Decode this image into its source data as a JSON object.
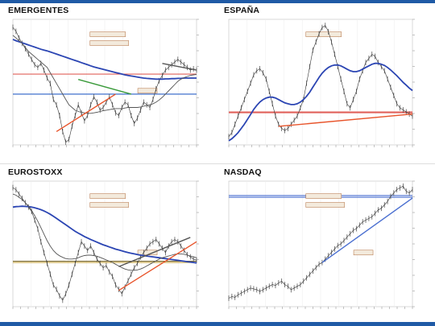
{
  "chart_data": [
    {
      "type": "line",
      "title": "EMERGENTES",
      "annotations": [
        "",
        "",
        ""
      ],
      "series": [
        {
          "role": "price",
          "color": "#333333",
          "values": [
            1290,
            1275,
            1250,
            1230,
            1210,
            1190,
            1170,
            1150,
            1140,
            1155,
            1130,
            1100,
            1080,
            1020,
            1000,
            960,
            900,
            860,
            870,
            920,
            960,
            1000,
            970,
            940,
            960,
            1000,
            1030,
            1010,
            980,
            990,
            1010,
            1030,
            1000,
            970,
            960,
            990,
            1010,
            1000,
            960,
            930,
            950,
            980,
            1010,
            1000,
            990,
            1020,
            1060,
            1090,
            1110,
            1130,
            1140,
            1150,
            1160,
            1170,
            1160,
            1150,
            1140,
            1130,
            1135,
            1130
          ]
        },
        {
          "role": "ma-long",
          "color": "#2b45b3",
          "values": [
            1245,
            1240,
            1236,
            1232,
            1228,
            1224,
            1220,
            1216,
            1212,
            1208,
            1205,
            1202,
            1198,
            1194,
            1190,
            1186,
            1182,
            1178,
            1174,
            1170,
            1166,
            1162,
            1158,
            1154,
            1150,
            1146,
            1142,
            1139,
            1136,
            1133,
            1130,
            1127,
            1124,
            1121,
            1118,
            1115,
            1112,
            1110,
            1108,
            1106,
            1104,
            1102,
            1100,
            1099,
            1098,
            1097,
            1096,
            1096,
            1096,
            1097,
            1097,
            1098,
            1098,
            1099,
            1099,
            1100,
            1100,
            1100,
            1100,
            1100
          ]
        },
        {
          "role": "ma-short",
          "color": "#555555",
          "values": [
            1260,
            1250,
            1240,
            1230,
            1215,
            1200,
            1190,
            1180,
            1170,
            1160,
            1150,
            1140,
            1120,
            1100,
            1080,
            1060,
            1040,
            1020,
            1000,
            990,
            980,
            975,
            972,
            970,
            968,
            968,
            970,
            972,
            975,
            978,
            980,
            982,
            984,
            986,
            986,
            986,
            988,
            990,
            990,
            990,
            990,
            992,
            995,
            998,
            1000,
            1004,
            1010,
            1018,
            1028,
            1040,
            1052,
            1064,
            1076,
            1088,
            1096,
            1102,
            1106,
            1110,
            1112,
            1114
          ]
        }
      ],
      "hlines": [
        {
          "y": 1115,
          "color": "#e0605a"
        },
        {
          "y": 1040,
          "color": "#2b62c7"
        }
      ],
      "trendlines": [
        {
          "from": [
            14,
            900
          ],
          "to": [
            33,
            1040
          ],
          "color": "#e8542b"
        },
        {
          "from": [
            21,
            1095
          ],
          "to": [
            38,
            1040
          ],
          "color": "#3a9a3a"
        },
        {
          "from": [
            48,
            1155
          ],
          "to": [
            59,
            1130
          ],
          "color": "#555555"
        }
      ],
      "ylim": [
        850,
        1320
      ]
    },
    {
      "type": "line",
      "title": "ESPAÑA",
      "annotations": [
        ""
      ],
      "series": [
        {
          "role": "price",
          "color": "#333333",
          "values": [
            1010,
            1020,
            1040,
            1060,
            1080,
            1100,
            1120,
            1140,
            1160,
            1170,
            1175,
            1165,
            1150,
            1120,
            1090,
            1060,
            1040,
            1030,
            1025,
            1030,
            1040,
            1050,
            1060,
            1080,
            1100,
            1140,
            1180,
            1220,
            1240,
            1260,
            1275,
            1280,
            1265,
            1240,
            1210,
            1180,
            1150,
            1120,
            1090,
            1080,
            1100,
            1120,
            1150,
            1170,
            1190,
            1200,
            1210,
            1205,
            1190,
            1180,
            1170,
            1150,
            1130,
            1110,
            1090,
            1080,
            1075,
            1070,
            1065,
            1060
          ]
        },
        {
          "role": "ma-long",
          "color": "#2b45b3",
          "values": [
            1000,
            1005,
            1012,
            1020,
            1030,
            1040,
            1052,
            1064,
            1076,
            1086,
            1094,
            1100,
            1104,
            1106,
            1106,
            1104,
            1100,
            1096,
            1092,
            1090,
            1088,
            1088,
            1090,
            1094,
            1100,
            1108,
            1118,
            1130,
            1142,
            1154,
            1164,
            1172,
            1178,
            1182,
            1184,
            1184,
            1182,
            1178,
            1174,
            1170,
            1168,
            1168,
            1170,
            1174,
            1178,
            1182,
            1186,
            1188,
            1188,
            1186,
            1183,
            1178,
            1172,
            1165,
            1158,
            1150,
            1142,
            1135,
            1128,
            1122
          ]
        }
      ],
      "hlines": [
        {
          "y": 1070,
          "color": "#e0605a"
        },
        {
          "y": 1068,
          "color": "#e0605a"
        }
      ],
      "trendlines": [
        {
          "from": [
            16,
            1035
          ],
          "to": [
            59,
            1065
          ],
          "color": "#e8542b"
        }
      ],
      "ylim": [
        990,
        1295
      ]
    },
    {
      "type": "line",
      "title": "EUROSTOXX",
      "annotations": [
        "",
        "",
        ""
      ],
      "series": [
        {
          "role": "price",
          "color": "#333333",
          "values": [
            3450,
            3440,
            3420,
            3400,
            3380,
            3360,
            3340,
            3300,
            3260,
            3200,
            3150,
            3100,
            3050,
            3000,
            2980,
            2950,
            2930,
            2960,
            3000,
            3050,
            3100,
            3150,
            3200,
            3180,
            3160,
            3180,
            3150,
            3120,
            3100,
            3080,
            3090,
            3060,
            3040,
            3000,
            2980,
            2960,
            2990,
            3020,
            3050,
            3080,
            3100,
            3130,
            3150,
            3170,
            3190,
            3200,
            3210,
            3190,
            3170,
            3150,
            3180,
            3200,
            3210,
            3200,
            3180,
            3160,
            3140,
            3130,
            3120,
            3115
          ]
        },
        {
          "role": "ma-long",
          "color": "#2b45b3",
          "values": [
            3360,
            3362,
            3363,
            3364,
            3363,
            3362,
            3360,
            3357,
            3353,
            3348,
            3342,
            3335,
            3327,
            3318,
            3308,
            3298,
            3288,
            3278,
            3268,
            3258,
            3248,
            3240,
            3232,
            3224,
            3217,
            3210,
            3204,
            3198,
            3192,
            3186,
            3181,
            3176,
            3171,
            3166,
            3162,
            3158,
            3154,
            3150,
            3147,
            3144,
            3141,
            3138,
            3136,
            3134,
            3132,
            3130,
            3128,
            3126,
            3124,
            3122,
            3120,
            3118,
            3116,
            3114,
            3112,
            3110,
            3108,
            3106,
            3104,
            3102
          ]
        },
        {
          "role": "ma-short",
          "color": "#555555",
          "values": [
            3420,
            3415,
            3405,
            3395,
            3380,
            3365,
            3345,
            3320,
            3295,
            3265,
            3235,
            3205,
            3180,
            3160,
            3145,
            3135,
            3128,
            3122,
            3120,
            3120,
            3122,
            3126,
            3132,
            3136,
            3138,
            3138,
            3136,
            3133,
            3128,
            3122,
            3116,
            3110,
            3104,
            3096,
            3088,
            3080,
            3074,
            3070,
            3068,
            3068,
            3070,
            3074,
            3080,
            3088,
            3096,
            3104,
            3112,
            3120,
            3126,
            3130,
            3134,
            3138,
            3142,
            3144,
            3144,
            3142,
            3138,
            3134,
            3130,
            3126
          ]
        }
      ],
      "hlines": [
        {
          "y": 3110,
          "color": "#7a6a30"
        },
        {
          "y": 3104,
          "color": "#c9a640"
        }
      ],
      "trendlines": [
        {
          "from": [
            34,
            2975
          ],
          "to": [
            59,
            3200
          ],
          "color": "#e8542b"
        },
        {
          "from": [
            34,
            3085
          ],
          "to": [
            57,
            3220
          ],
          "color": "#555555"
        }
      ],
      "ylim": [
        2900,
        3480
      ]
    },
    {
      "type": "line",
      "title": "NASDAQ",
      "annotations": [
        "",
        "",
        ""
      ],
      "series": [
        {
          "role": "price",
          "color": "#333333",
          "values": [
            3650,
            3660,
            3655,
            3670,
            3680,
            3690,
            3700,
            3710,
            3705,
            3700,
            3690,
            3700,
            3710,
            3720,
            3730,
            3725,
            3740,
            3750,
            3730,
            3720,
            3700,
            3710,
            3720,
            3730,
            3750,
            3770,
            3790,
            3810,
            3830,
            3850,
            3860,
            3880,
            3900,
            3920,
            3940,
            3960,
            3970,
            3990,
            4010,
            4030,
            4050,
            4060,
            4080,
            4100,
            4110,
            4120,
            4130,
            4150,
            4170,
            4180,
            4200,
            4220,
            4250,
            4270,
            4290,
            4300,
            4310,
            4280,
            4270,
            4290
          ]
        }
      ],
      "hlines": [
        {
          "y": 4255,
          "color": "#4a6fd0"
        },
        {
          "y": 4245,
          "color": "#4a6fd0"
        }
      ],
      "trendlines": [
        {
          "from": [
            30,
            3860
          ],
          "to": [
            59,
            4240
          ],
          "color": "#4a6fd0"
        }
      ],
      "ylim": [
        3600,
        4340
      ]
    }
  ]
}
